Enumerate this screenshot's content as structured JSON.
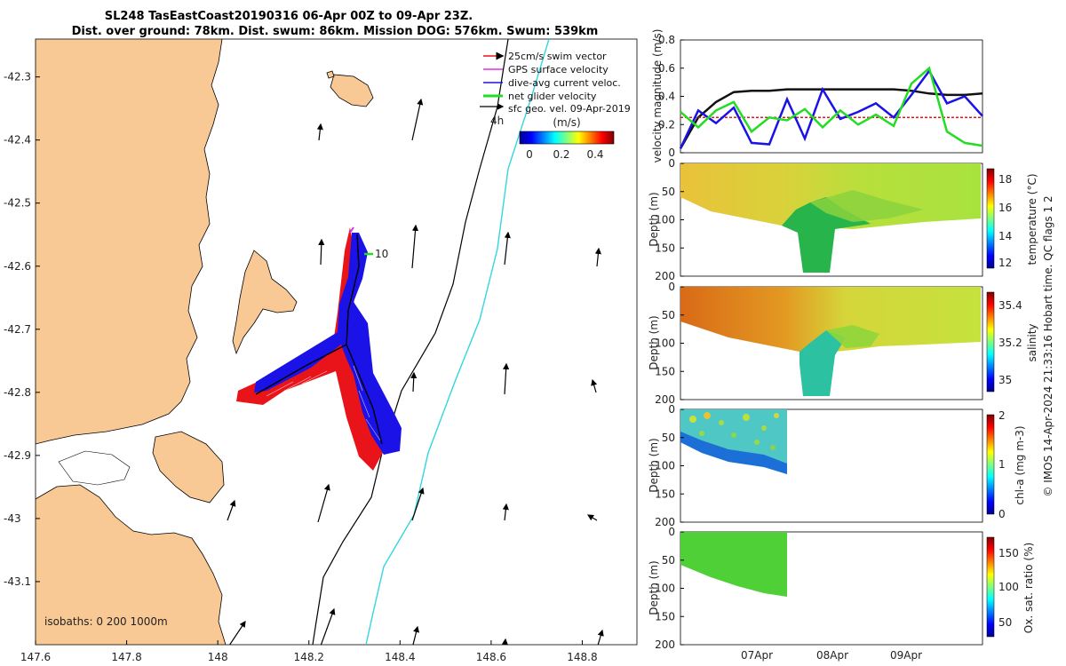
{
  "title_line1": "SL248 TasEastCoast20190316 06-Apr 00Z to 09-Apr 23Z.",
  "title_line2": "Dist. over ground: 78km. Dist. swum: 86km. Mission DOG: 576km. Swum: 539km",
  "side_note": "© IMOS 14-Apr-2024 21:33:16 Hobart time. QC flags 1 2",
  "colors": {
    "land": "#f9c995",
    "swim": "#e8141a",
    "gps": "#e22ee2",
    "dive": "#1a12e6",
    "net": "#22dd22",
    "isobath": "#000000",
    "isobath2": "#33d6e0",
    "speed_black": "#111111"
  },
  "chart_data": [
    {
      "type": "map",
      "name": "track-map",
      "x_ticks": [
        "147.6",
        "147.8",
        "148",
        "148.2",
        "148.4",
        "148.6",
        "148.8"
      ],
      "y_ticks": [
        "-42.3",
        "-42.4",
        "-42.5",
        "-42.6",
        "-42.7",
        "-42.8",
        "-42.9",
        "-43",
        "-43.1"
      ],
      "xlim": [
        147.6,
        148.92
      ],
      "ylim": [
        -43.2,
        -42.24
      ],
      "legend": [
        {
          "label": "25cm/s swim vector",
          "color": "#e8141a"
        },
        {
          "label": "GPS surface velocity",
          "color": "#e22ee2"
        },
        {
          "label": "dive-avg current veloc.",
          "color": "#1a12e6"
        },
        {
          "label": "net glider velocity",
          "color": "#22dd22"
        },
        {
          "label": "sfc geo. vel. 09-Apr-2019",
          "color": "#111111"
        }
      ],
      "colorbar": {
        "label": "(m/s)",
        "ticks": [
          "0",
          "0.2",
          "0.4"
        ],
        "range": [
          0,
          0.5
        ]
      },
      "annotations": {
        "time_marker": "4h",
        "track_label": "10",
        "isobaths": "isobaths: 0   200  1000m"
      }
    },
    {
      "type": "line",
      "name": "velocity-panel",
      "ylabel": "velocity magnitude (m/s)",
      "ylim": [
        0,
        0.8
      ],
      "yticks": [
        "0",
        "0.2",
        "0.4",
        "0.6",
        "0.8"
      ],
      "series": [
        {
          "name": "black",
          "values": [
            0.03,
            0.25,
            0.36,
            0.43,
            0.44,
            0.44,
            0.45,
            0.45,
            0.45,
            0.45,
            0.45,
            0.45,
            0.45,
            0.44,
            0.42,
            0.41,
            0.41,
            0.42
          ]
        },
        {
          "name": "red",
          "values": [
            0.25,
            0.25,
            0.25,
            0.25,
            0.25,
            0.25,
            0.25,
            0.25,
            0.25,
            0.25,
            0.25,
            0.25,
            0.25,
            0.25,
            0.25,
            0.25,
            0.25,
            0.25
          ]
        },
        {
          "name": "blue",
          "values": [
            0.03,
            0.3,
            0.21,
            0.32,
            0.07,
            0.06,
            0.38,
            0.1,
            0.45,
            0.24,
            0.29,
            0.35,
            0.25,
            0.41,
            0.58,
            0.35,
            0.4,
            0.26
          ]
        },
        {
          "name": "green",
          "values": [
            0.29,
            0.18,
            0.3,
            0.36,
            0.15,
            0.25,
            0.23,
            0.31,
            0.18,
            0.3,
            0.2,
            0.27,
            0.19,
            0.49,
            0.6,
            0.15,
            0.07,
            0.05
          ]
        }
      ]
    },
    {
      "type": "heatmap",
      "name": "temperature-panel",
      "ylabel": "Depth (m)",
      "yticks": [
        "0",
        "50",
        "100",
        "150",
        "200"
      ],
      "colorbar": {
        "label": "temperature (°C)",
        "ticks": [
          "18",
          "16",
          "14",
          "12"
        ]
      }
    },
    {
      "type": "heatmap",
      "name": "salinity-panel",
      "ylabel": "Depth (m)",
      "yticks": [
        "0",
        "50",
        "100",
        "150",
        "200"
      ],
      "colorbar": {
        "label": "salinity",
        "ticks": [
          "35.4",
          "35.2",
          "35"
        ]
      }
    },
    {
      "type": "heatmap",
      "name": "chla-panel",
      "ylabel": "Depth (m)",
      "yticks": [
        "0",
        "50",
        "100",
        "150",
        "200"
      ],
      "colorbar": {
        "label": "chl-a (mg m-3)",
        "ticks": [
          "2",
          "1",
          "0"
        ]
      }
    },
    {
      "type": "heatmap",
      "name": "oxygen-panel",
      "ylabel": "Depth (m)",
      "yticks": [
        "0",
        "50",
        "100",
        "150",
        "200"
      ],
      "xticks": [
        "07Apr",
        "08Apr",
        "09Apr"
      ],
      "colorbar": {
        "label": "Ox. sat. ratio (%)",
        "ticks": [
          "150",
          "100",
          "50"
        ]
      }
    }
  ]
}
